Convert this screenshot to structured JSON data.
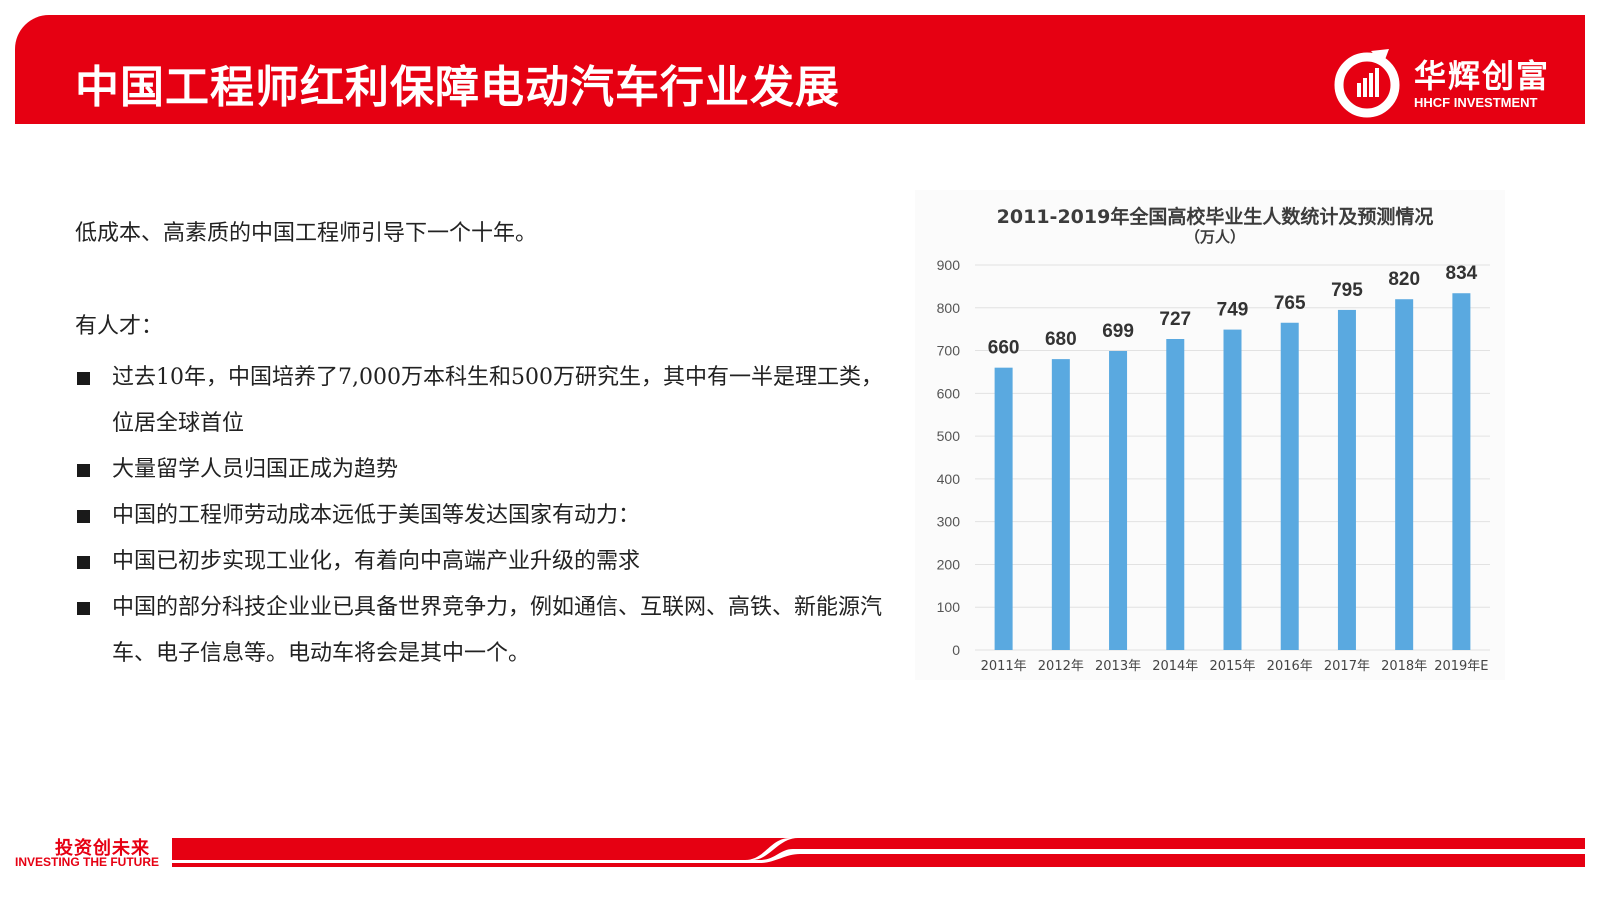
{
  "header": {
    "title": "中国工程师红利保障电动汽车行业发展",
    "logo_cn": "华辉创富",
    "logo_en": "HHCF INVESTMENT"
  },
  "content": {
    "intro": "低成本、高素质的中国工程师引导下一个十年。",
    "talent_heading": "有人才：",
    "bullets": [
      "过去10年，中国培养了7,000万本科生和500万研究生，其中有一半是理工类，位居全球首位",
      "大量留学人员归国正成为趋势",
      "中国的工程师劳动成本远低于美国等发达国家有动力：",
      "中国已初步实现工业化，有着向中高端产业升级的需求",
      "中国的部分科技企业业已具备世界竞争力，例如通信、互联网、高铁、新能源汽车、电子信息等。电动车将会是其中一个。"
    ]
  },
  "chart_data": {
    "type": "bar",
    "title": "2011-2019年全国高校毕业生人数统计及预测情况",
    "subtitle": "（万人）",
    "categories": [
      "2011年",
      "2012年",
      "2013年",
      "2014年",
      "2015年",
      "2016年",
      "2017年",
      "2018年",
      "2019年E"
    ],
    "values": [
      660,
      680,
      699,
      727,
      749,
      765,
      795,
      820,
      834
    ],
    "ylim": [
      0,
      900
    ],
    "yticks": [
      0,
      100,
      200,
      300,
      400,
      500,
      600,
      700,
      800,
      900
    ],
    "grid": true,
    "bar_color": "#5aa9e0"
  },
  "footer": {
    "slogan_cn": "投资创未来",
    "slogan_en": "INVESTING THE FUTURE"
  },
  "colors": {
    "brand_red": "#e60012"
  }
}
